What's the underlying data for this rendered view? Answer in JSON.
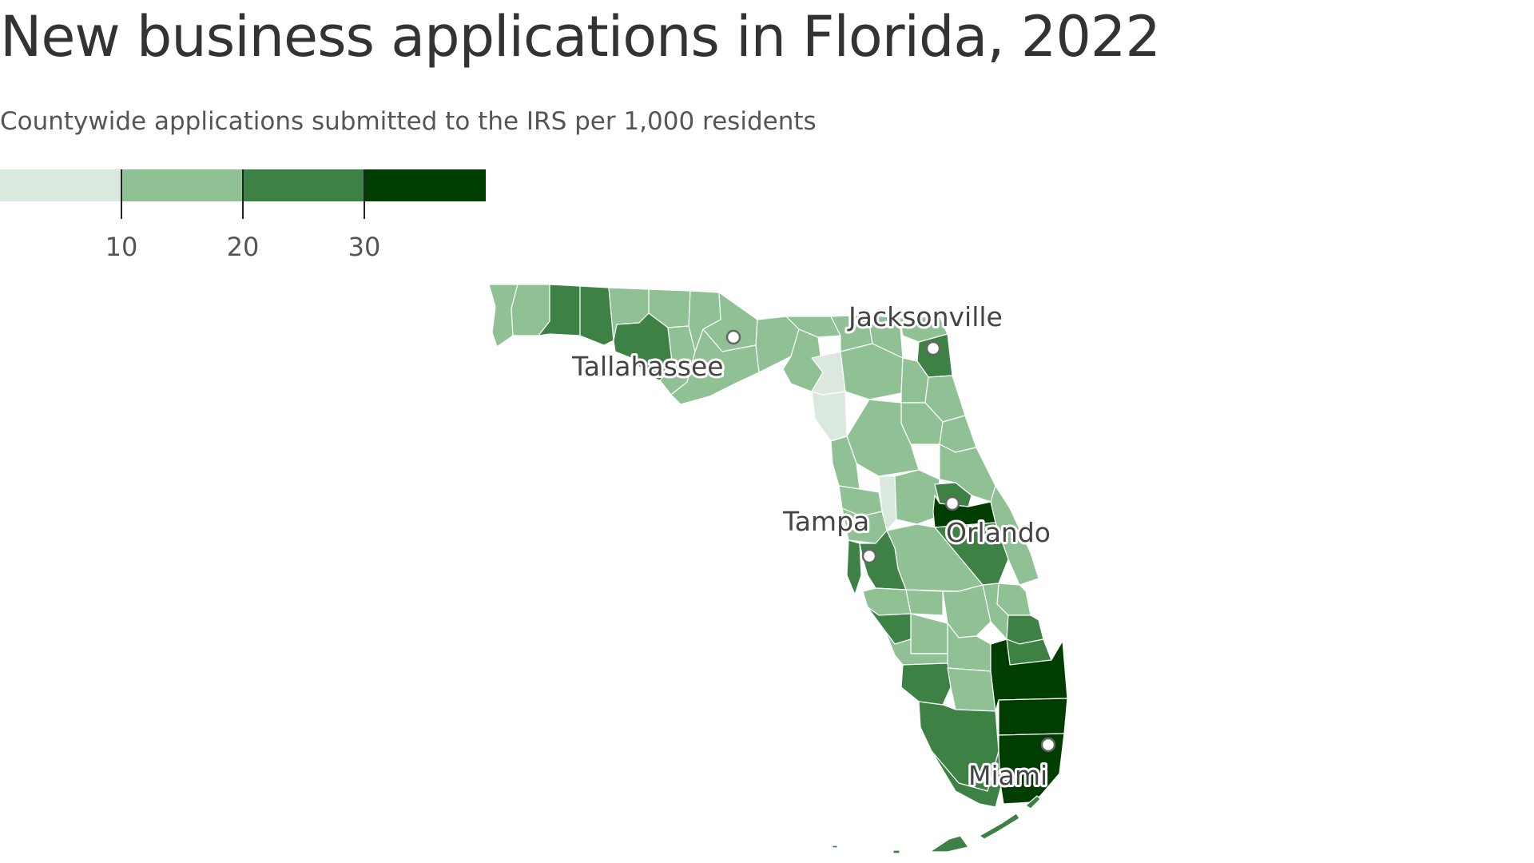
{
  "title": "New business applications in Florida, 2022",
  "subtitle": "Countywide applications submitted to the IRS per 1,000 residents",
  "legend": {
    "bins": [
      {
        "min": 0,
        "max": 10,
        "color": "#dbe8de"
      },
      {
        "min": 10,
        "max": 20,
        "color": "#8fc194"
      },
      {
        "min": 20,
        "max": 30,
        "color": "#3d8145"
      },
      {
        "min": 30,
        "max": 40,
        "color": "#003d00"
      }
    ],
    "tick_labels": [
      "10",
      "20",
      "30"
    ]
  },
  "colors": {
    "very_low": "#dbe8de",
    "low": "#8fc194",
    "medium": "#3d8145",
    "high": "#003d00",
    "border": "#ffffff"
  },
  "cities": [
    {
      "name": "Jacksonville",
      "marker": "white-dot-icon"
    },
    {
      "name": "Tallahassee",
      "marker": "white-dot-icon"
    },
    {
      "name": "Tampa",
      "marker": "white-dot-icon"
    },
    {
      "name": "Orlando",
      "marker": "white-dot-icon"
    },
    {
      "name": "Miami",
      "marker": "white-dot-icon"
    }
  ]
}
